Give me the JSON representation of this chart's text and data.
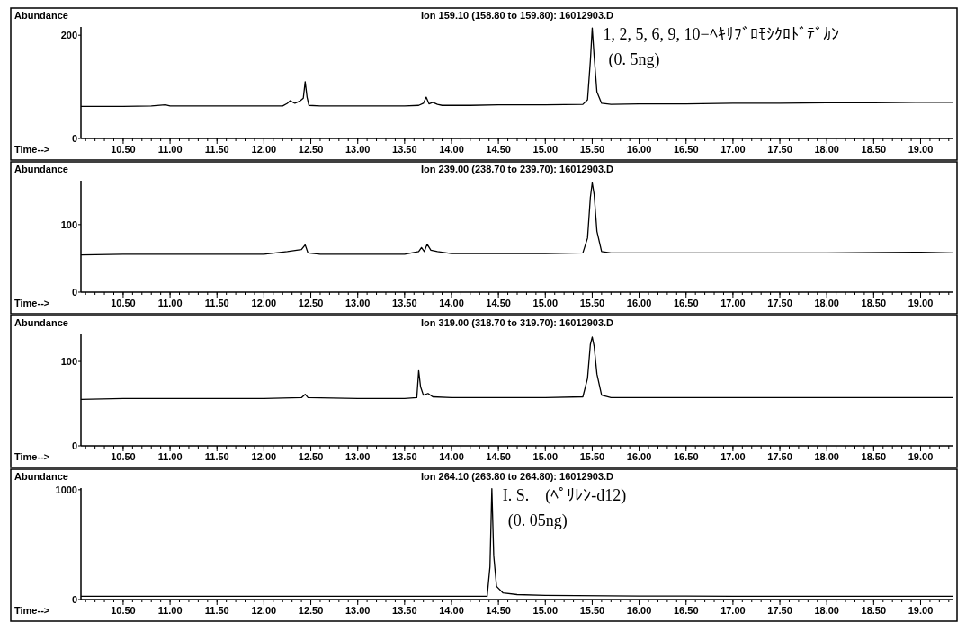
{
  "chart_data": [
    {
      "type": "line",
      "title": "Ion 159.10 (158.80 to 159.80): 16012903.D",
      "xlabel": "Time-->",
      "ylabel": "Abundance",
      "xlim": [
        10.05,
        19.35
      ],
      "ylim": [
        0,
        216
      ],
      "yticks": [
        0,
        200
      ],
      "xticks": [
        {
          "value": 10.5,
          "label": "10.50"
        },
        {
          "value": 11,
          "label": "11.00"
        },
        {
          "value": 11.5,
          "label": "11.50"
        },
        {
          "value": 12,
          "label": "12.00"
        },
        {
          "value": 12.5,
          "label": "12.50"
        },
        {
          "value": 13,
          "label": "13.00"
        },
        {
          "value": 13.5,
          "label": "13.50"
        },
        {
          "value": 14,
          "label": "14.00"
        },
        {
          "value": 14.5,
          "label": "14.50"
        },
        {
          "value": 15,
          "label": "15.00"
        },
        {
          "value": 15.5,
          "label": "15.50"
        },
        {
          "value": 16,
          "label": "16.00"
        },
        {
          "value": 16.5,
          "label": "16.50"
        },
        {
          "value": 17,
          "label": "17.00"
        },
        {
          "value": 17.5,
          "label": "17.50"
        },
        {
          "value": 18,
          "label": "18.00"
        },
        {
          "value": 18.5,
          "label": "18.50"
        },
        {
          "value": 19,
          "label": "19.00"
        }
      ],
      "x": [
        10.05,
        10.5,
        10.8,
        10.95,
        11.0,
        11.5,
        12.0,
        12.2,
        12.25,
        12.28,
        12.33,
        12.38,
        12.42,
        12.44,
        12.46,
        12.48,
        12.6,
        13.0,
        13.5,
        13.65,
        13.7,
        13.73,
        13.76,
        13.8,
        13.85,
        13.9,
        14.2,
        14.5,
        15.0,
        15.4,
        15.45,
        15.48,
        15.5,
        15.52,
        15.55,
        15.6,
        15.7,
        16.0,
        16.5,
        17.0,
        17.5,
        18.0,
        18.5,
        19.0,
        19.35
      ],
      "series": [
        {
          "color": "#000000",
          "values": [
            62,
            62,
            63,
            65,
            63,
            63,
            63,
            63,
            68,
            73,
            68,
            72,
            78,
            110,
            80,
            64,
            63,
            63,
            63,
            64,
            68,
            80,
            67,
            70,
            66,
            64,
            64,
            65,
            65,
            66,
            75,
            150,
            214,
            160,
            90,
            68,
            66,
            67,
            67,
            68,
            68,
            69,
            69,
            70,
            70
          ]
        }
      ],
      "annotations": [
        "1, 2, 5, 6, 9, 10−ﾍｷｻﾌﾞﾛﾓｼｸﾛﾄﾞﾃﾞｶﾝ",
        "(0. 5ng)"
      ]
    },
    {
      "type": "line",
      "title": "Ion 239.00 (238.70 to 239.70): 16012903.D",
      "xlabel": "Time-->",
      "ylabel": "Abundance",
      "xlim": [
        10.05,
        19.35
      ],
      "ylim": [
        0,
        165
      ],
      "yticks": [
        0,
        100
      ],
      "xticks": [
        {
          "value": 10.5,
          "label": "10.50"
        },
        {
          "value": 11,
          "label": "11.00"
        },
        {
          "value": 11.5,
          "label": "11.50"
        },
        {
          "value": 12,
          "label": "12.00"
        },
        {
          "value": 12.5,
          "label": "12.50"
        },
        {
          "value": 13,
          "label": "13.00"
        },
        {
          "value": 13.5,
          "label": "13.50"
        },
        {
          "value": 14,
          "label": "14.00"
        },
        {
          "value": 14.5,
          "label": "14.50"
        },
        {
          "value": 15,
          "label": "15.00"
        },
        {
          "value": 15.5,
          "label": "15.50"
        },
        {
          "value": 16,
          "label": "16.00"
        },
        {
          "value": 16.5,
          "label": "16.50"
        },
        {
          "value": 17,
          "label": "17.00"
        },
        {
          "value": 17.5,
          "label": "17.50"
        },
        {
          "value": 18,
          "label": "18.00"
        },
        {
          "value": 18.5,
          "label": "18.50"
        },
        {
          "value": 19,
          "label": "19.00"
        }
      ],
      "x": [
        10.05,
        10.5,
        11.0,
        11.5,
        12.0,
        12.25,
        12.4,
        12.44,
        12.47,
        12.6,
        13.0,
        13.5,
        13.65,
        13.68,
        13.71,
        13.74,
        13.78,
        13.85,
        14.0,
        14.5,
        15.0,
        15.4,
        15.45,
        15.48,
        15.5,
        15.52,
        15.55,
        15.6,
        15.7,
        16.0,
        17.0,
        18.0,
        19.0,
        19.35
      ],
      "series": [
        {
          "color": "#000000",
          "values": [
            55,
            56,
            56,
            56,
            56,
            60,
            63,
            70,
            58,
            56,
            56,
            56,
            60,
            66,
            60,
            71,
            62,
            60,
            57,
            57,
            57,
            58,
            80,
            140,
            162,
            145,
            90,
            60,
            58,
            58,
            58,
            58,
            59,
            58
          ]
        }
      ]
    },
    {
      "type": "line",
      "title": "Ion 319.00 (318.70 to 319.70): 16012903.D",
      "xlabel": "Time-->",
      "ylabel": "Abundance",
      "xlim": [
        10.05,
        19.35
      ],
      "ylim": [
        0,
        132
      ],
      "yticks": [
        0,
        100
      ],
      "xticks": [
        {
          "value": 10.5,
          "label": "10.50"
        },
        {
          "value": 11,
          "label": "11.00"
        },
        {
          "value": 11.5,
          "label": "11.50"
        },
        {
          "value": 12,
          "label": "12.00"
        },
        {
          "value": 12.5,
          "label": "12.50"
        },
        {
          "value": 13,
          "label": "13.00"
        },
        {
          "value": 13.5,
          "label": "13.50"
        },
        {
          "value": 14,
          "label": "14.00"
        },
        {
          "value": 14.5,
          "label": "14.50"
        },
        {
          "value": 15,
          "label": "15.00"
        },
        {
          "value": 15.5,
          "label": "15.50"
        },
        {
          "value": 16,
          "label": "16.00"
        },
        {
          "value": 16.5,
          "label": "16.50"
        },
        {
          "value": 17,
          "label": "17.00"
        },
        {
          "value": 17.5,
          "label": "17.50"
        },
        {
          "value": 18,
          "label": "18.00"
        },
        {
          "value": 18.5,
          "label": "18.50"
        },
        {
          "value": 19,
          "label": "19.00"
        }
      ],
      "x": [
        10.05,
        10.5,
        11.0,
        12.0,
        12.4,
        12.44,
        12.47,
        13.0,
        13.5,
        13.63,
        13.65,
        13.67,
        13.7,
        13.75,
        13.8,
        14.0,
        15.0,
        15.4,
        15.45,
        15.48,
        15.5,
        15.52,
        15.55,
        15.6,
        15.7,
        16.0,
        17.0,
        18.0,
        19.0,
        19.35
      ],
      "series": [
        {
          "color": "#000000",
          "values": [
            55,
            56,
            56,
            56,
            57,
            61,
            57,
            56,
            56,
            57,
            89,
            70,
            60,
            62,
            58,
            57,
            57,
            58,
            80,
            120,
            129,
            118,
            85,
            60,
            57,
            57,
            57,
            57,
            57,
            57
          ]
        }
      ]
    },
    {
      "type": "line",
      "title": "Ion 264.10 (263.80 to 264.80): 16012903.D",
      "xlabel": "Time-->",
      "ylabel": "Abundance",
      "xlim": [
        10.05,
        19.35
      ],
      "ylim": [
        0,
        1015
      ],
      "yticks": [
        0,
        1000
      ],
      "xticks": [
        {
          "value": 10.5,
          "label": "10.50"
        },
        {
          "value": 11,
          "label": "11.00"
        },
        {
          "value": 11.5,
          "label": "11.50"
        },
        {
          "value": 12,
          "label": "12.00"
        },
        {
          "value": 12.5,
          "label": "12.50"
        },
        {
          "value": 13,
          "label": "13.00"
        },
        {
          "value": 13.5,
          "label": "13.50"
        },
        {
          "value": 14,
          "label": "14.00"
        },
        {
          "value": 14.5,
          "label": "14.50"
        },
        {
          "value": 15,
          "label": "15.00"
        },
        {
          "value": 15.5,
          "label": "15.50"
        },
        {
          "value": 16,
          "label": "16.00"
        },
        {
          "value": 16.5,
          "label": "16.50"
        },
        {
          "value": 17,
          "label": "17.00"
        },
        {
          "value": 17.5,
          "label": "17.50"
        },
        {
          "value": 18,
          "label": "18.00"
        },
        {
          "value": 18.5,
          "label": "18.50"
        },
        {
          "value": 19,
          "label": "19.00"
        }
      ],
      "x": [
        10.05,
        11.0,
        12.0,
        13.0,
        14.0,
        14.38,
        14.41,
        14.43,
        14.45,
        14.48,
        14.55,
        14.7,
        15.0,
        16.0,
        17.0,
        18.0,
        19.0,
        19.35
      ],
      "series": [
        {
          "color": "#000000",
          "values": [
            30,
            30,
            30,
            30,
            30,
            30,
            300,
            1010,
            400,
            120,
            60,
            45,
            38,
            32,
            30,
            30,
            30,
            30
          ]
        }
      ],
      "annotations": [
        "I. S.　(ﾍﾟﾘﾚﾝ-d12)",
        "(0. 05ng)"
      ]
    }
  ]
}
